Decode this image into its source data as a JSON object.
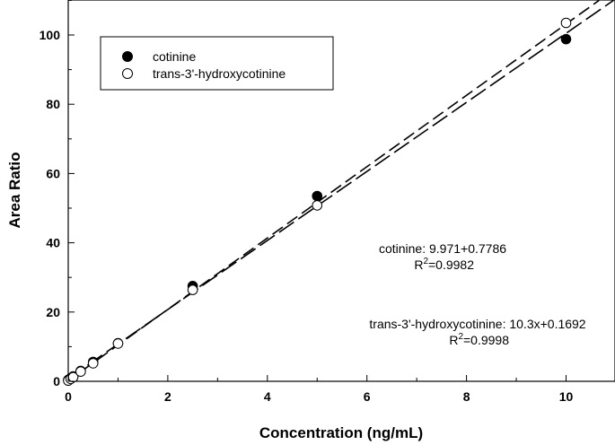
{
  "chart_data": {
    "type": "scatter",
    "title": "",
    "xlabel": "Concentration (ng/mL)",
    "ylabel": "Area Ratio",
    "xlim": [
      0,
      11
    ],
    "ylim": [
      0,
      110
    ],
    "xticks": [
      0,
      2,
      4,
      6,
      8,
      10
    ],
    "yticks": [
      0,
      20,
      40,
      60,
      80,
      100
    ],
    "grid": false,
    "legend_position": "top-left",
    "series": [
      {
        "name": "cotinine",
        "marker": "filled-circle",
        "color": "#000000",
        "x": [
          0,
          0.05,
          0.1,
          0.25,
          0.5,
          1,
          2.5,
          5,
          10
        ],
        "y": [
          0.4,
          0.9,
          1.4,
          3.0,
          5.6,
          11.0,
          27.5,
          53.5,
          98.8
        ],
        "fit": {
          "slope": 9.971,
          "intercept": 0.7786,
          "style": "dashed"
        }
      },
      {
        "name": "trans-3'-hydroxycotinine",
        "marker": "open-circle",
        "color": "#000000",
        "x": [
          0,
          0.05,
          0.1,
          0.25,
          0.5,
          1,
          2.5,
          5,
          10
        ],
        "y": [
          0.2,
          0.7,
          1.2,
          2.8,
          5.2,
          10.9,
          26.4,
          50.8,
          103.5
        ],
        "fit": {
          "slope": 10.3,
          "intercept": 0.1692,
          "style": "dashed"
        }
      }
    ],
    "annotations": [
      {
        "line1": "cotinine: 9.971+0.7786",
        "r2_prefix": "R",
        "r2_sup": "2",
        "r2_value": "=0.9982"
      },
      {
        "line1": "trans-3'-hydroxycotinine: 10.3x+0.1692",
        "r2_prefix": "R",
        "r2_sup": "2",
        "r2_value": "=0.9998"
      }
    ]
  }
}
